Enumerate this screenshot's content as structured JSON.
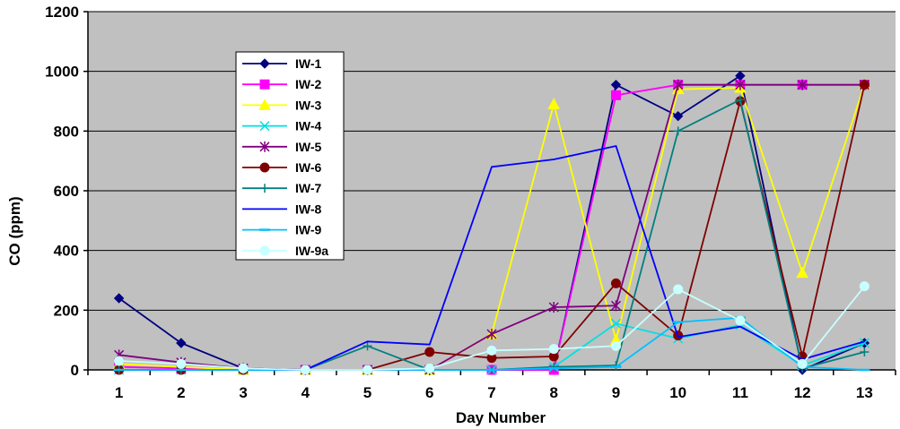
{
  "chart_data": {
    "type": "line",
    "xlabel": "Day Number",
    "ylabel": "CO (ppm)",
    "x": [
      1,
      2,
      3,
      4,
      5,
      6,
      7,
      8,
      9,
      10,
      11,
      12,
      13
    ],
    "xlim": [
      0.5,
      13.5
    ],
    "ylim": [
      0,
      1200
    ],
    "yticks": [
      0,
      200,
      400,
      600,
      800,
      1000,
      1200
    ],
    "grid": "horizontal",
    "plot_background": "#c0c0c0",
    "legend_position": "upper-left inside plot",
    "series": [
      {
        "name": "IW-1",
        "color": "#000080",
        "marker": "diamond",
        "values": [
          240,
          90,
          5,
          0,
          0,
          0,
          0,
          0,
          955,
          850,
          985,
          0,
          90
        ]
      },
      {
        "name": "IW-2",
        "color": "#ff00ff",
        "marker": "square",
        "values": [
          10,
          5,
          0,
          0,
          0,
          0,
          0,
          0,
          920,
          955,
          955,
          955,
          955
        ]
      },
      {
        "name": "IW-3",
        "color": "#ffff00",
        "marker": "triangle",
        "values": [
          20,
          10,
          0,
          0,
          0,
          0,
          120,
          890,
          100,
          940,
          945,
          325,
          955
        ]
      },
      {
        "name": "IW-4",
        "color": "#00e0e0",
        "marker": "x",
        "values": [
          0,
          0,
          0,
          0,
          0,
          0,
          0,
          10,
          155,
          105,
          150,
          15,
          90
        ]
      },
      {
        "name": "IW-5",
        "color": "#800080",
        "marker": "star",
        "values": [
          50,
          25,
          5,
          0,
          0,
          0,
          120,
          210,
          215,
          955,
          955,
          955,
          955
        ]
      },
      {
        "name": "IW-6",
        "color": "#800000",
        "marker": "circle",
        "values": [
          0,
          0,
          0,
          0,
          0,
          60,
          40,
          45,
          290,
          115,
          900,
          45,
          955
        ]
      },
      {
        "name": "IW-7",
        "color": "#008080",
        "marker": "plus",
        "values": [
          0,
          0,
          0,
          0,
          80,
          0,
          0,
          10,
          15,
          800,
          905,
          5,
          60
        ]
      },
      {
        "name": "IW-8",
        "color": "#0000ff",
        "marker": "none",
        "values": [
          0,
          0,
          0,
          0,
          95,
          85,
          680,
          705,
          750,
          110,
          145,
          35,
          95
        ]
      },
      {
        "name": "IW-9",
        "color": "#00c0ff",
        "marker": "dash",
        "values": [
          0,
          0,
          0,
          0,
          0,
          0,
          0,
          5,
          10,
          160,
          175,
          10,
          0
        ]
      },
      {
        "name": "IW-9a",
        "color": "#c8ffff",
        "marker": "circle",
        "values": [
          30,
          20,
          5,
          0,
          0,
          5,
          65,
          70,
          80,
          270,
          165,
          20,
          280
        ]
      }
    ]
  }
}
